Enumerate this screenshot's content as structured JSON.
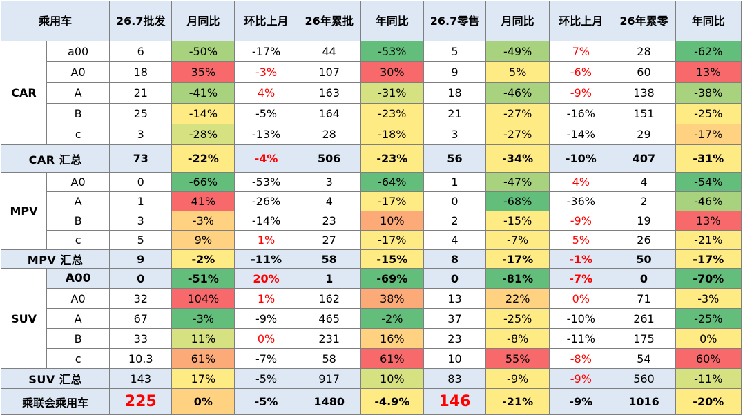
{
  "header": {
    "corner": "乘用车",
    "cols": [
      "26.7批发",
      "月同比",
      "环比上月",
      "26年累批",
      "年同比",
      "26.7零售",
      "月同比",
      "环比上月",
      "26年累零",
      "年同比"
    ]
  },
  "colors": {
    "header_bg": "#dde8f4",
    "summary_bg": "#dde8f4",
    "red_text": "#ff0000",
    "green_dark": "#63be7b",
    "green_mid": "#a9d27f",
    "yellow_green": "#d6e281",
    "yellow": "#ffeb84",
    "orange_light": "#fed280",
    "orange": "#fcaa77",
    "red_fill": "#f8696b"
  },
  "groups": [
    {
      "label": "CAR",
      "rows": [
        {
          "sub": "a00",
          "cells": [
            "6",
            "-50%",
            "-17%",
            "44",
            "-53%",
            "5",
            "-49%",
            "7%",
            "28",
            "-62%"
          ]
        },
        {
          "sub": "A0",
          "cells": [
            "18",
            "35%",
            "-3%",
            "107",
            "30%",
            "9",
            "5%",
            "-6%",
            "60",
            "13%"
          ]
        },
        {
          "sub": "A",
          "cells": [
            "21",
            "-41%",
            "4%",
            "163",
            "-31%",
            "18",
            "-46%",
            "-9%",
            "138",
            "-38%"
          ]
        },
        {
          "sub": "B",
          "cells": [
            "25",
            "-14%",
            "-5%",
            "164",
            "-23%",
            "21",
            "-27%",
            "-16%",
            "151",
            "-25%"
          ]
        },
        {
          "sub": "c",
          "cells": [
            "3",
            "-28%",
            "-13%",
            "28",
            "-18%",
            "3",
            "-27%",
            "-14%",
            "29",
            "-17%"
          ]
        }
      ],
      "summary": {
        "label": "CAR 汇总",
        "cells": [
          "73",
          "-22%",
          "-4%",
          "506",
          "-23%",
          "56",
          "-34%",
          "-10%",
          "407",
          "-31%"
        ]
      }
    },
    {
      "label": "MPV",
      "rows": [
        {
          "sub": "A0",
          "cells": [
            "0",
            "-66%",
            "-53%",
            "3",
            "-64%",
            "1",
            "-47%",
            "4%",
            "4",
            "-54%"
          ]
        },
        {
          "sub": "A",
          "cells": [
            "1",
            "41%",
            "-26%",
            "4",
            "-17%",
            "0",
            "-68%",
            "-36%",
            "2",
            "-46%"
          ]
        },
        {
          "sub": "B",
          "cells": [
            "3",
            "-3%",
            "-14%",
            "23",
            "10%",
            "2",
            "-15%",
            "-9%",
            "19",
            "13%"
          ]
        },
        {
          "sub": "c",
          "cells": [
            "5",
            "9%",
            "1%",
            "27",
            "-17%",
            "4",
            "-7%",
            "5%",
            "26",
            "-21%"
          ]
        }
      ],
      "summary": {
        "label": "MPV 汇总",
        "cells": [
          "9",
          "-2%",
          "-11%",
          "58",
          "-15%",
          "8",
          "-17%",
          "-1%",
          "50",
          "-17%"
        ]
      }
    },
    {
      "label": "SUV",
      "rows": [
        {
          "sub": "A00",
          "cells": [
            "0",
            "-51%",
            "20%",
            "1",
            "-69%",
            "0",
            "-81%",
            "-7%",
            "0",
            "-70%"
          ]
        },
        {
          "sub": "A0",
          "cells": [
            "32",
            "104%",
            "1%",
            "162",
            "38%",
            "13",
            "22%",
            "0%",
            "71",
            "-3%"
          ]
        },
        {
          "sub": "A",
          "cells": [
            "67",
            "-3%",
            "-9%",
            "465",
            "-2%",
            "37",
            "-25%",
            "-10%",
            "261",
            "-25%"
          ]
        },
        {
          "sub": "B",
          "cells": [
            "33",
            "11%",
            "0%",
            "231",
            "16%",
            "23",
            "-8%",
            "-11%",
            "175",
            "0%"
          ]
        },
        {
          "sub": "c",
          "cells": [
            "10.3",
            "61%",
            "-7%",
            "58",
            "61%",
            "10",
            "55%",
            "-8%",
            "54",
            "60%"
          ]
        }
      ],
      "summary": {
        "label": "SUV 汇总",
        "cells": [
          "143",
          "17%",
          "-5%",
          "917",
          "10%",
          "83",
          "-9%",
          "-9%",
          "560",
          "-11%"
        ]
      }
    }
  ],
  "total": {
    "label": "乘联会乘用车",
    "cells": [
      "225",
      "0%",
      "-5%",
      "1480",
      "-4.9%",
      "146",
      "-21%",
      "-9%",
      "1016",
      "-20%"
    ]
  }
}
